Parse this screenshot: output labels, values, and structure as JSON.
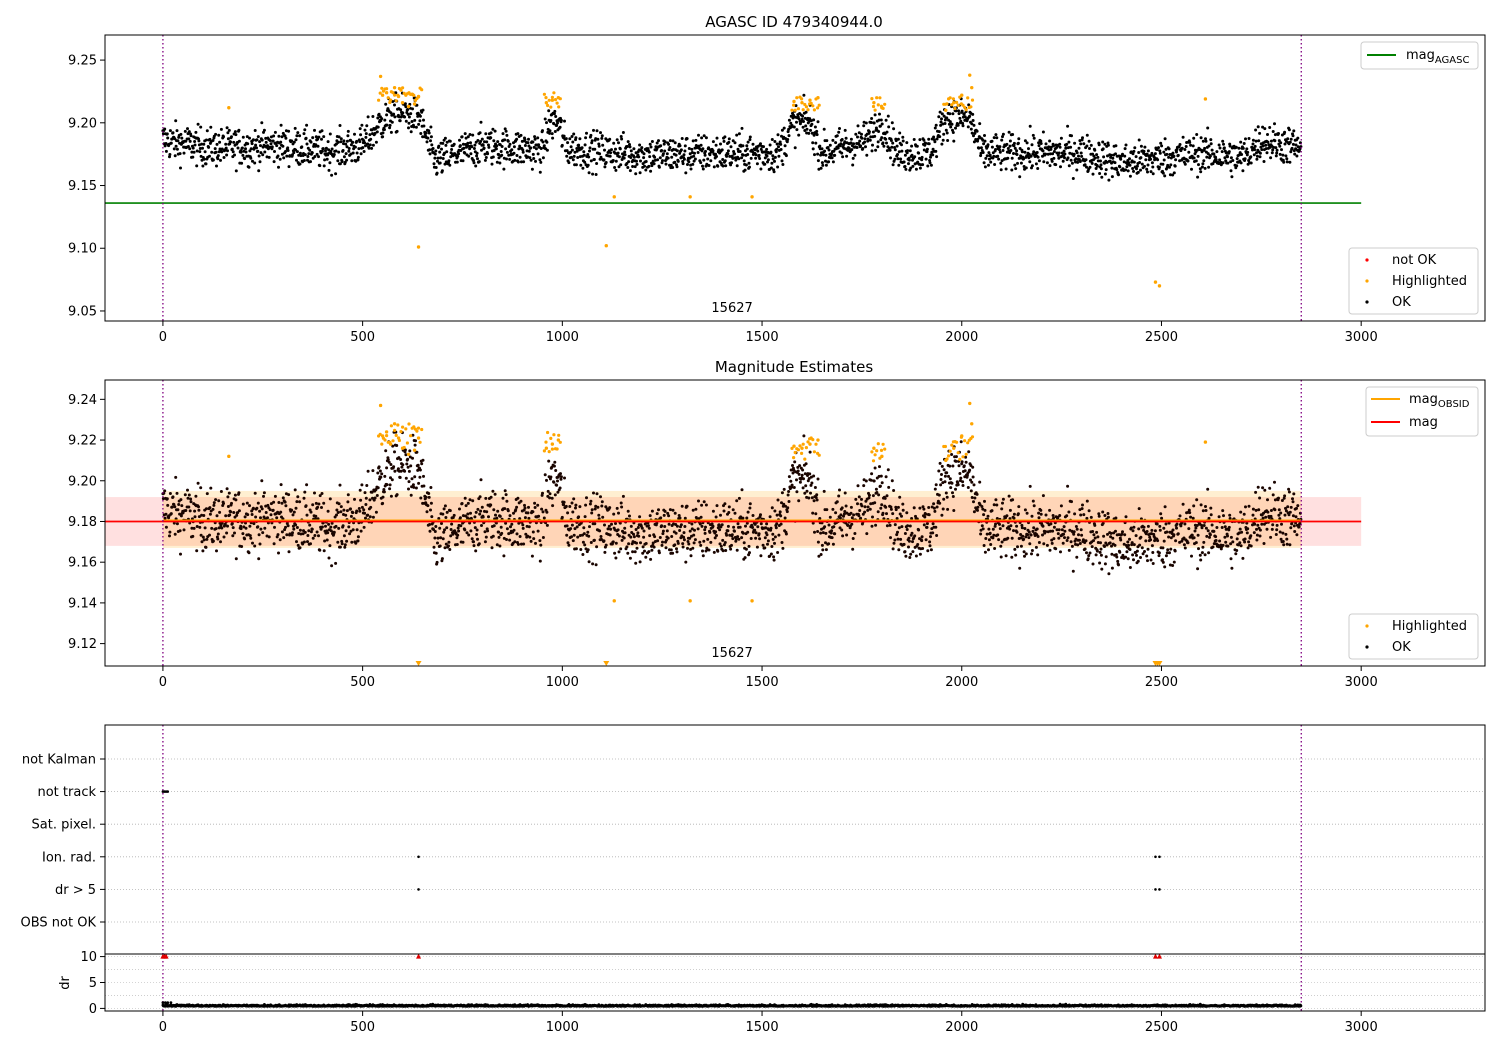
{
  "chart_data": [
    {
      "type": "scatter",
      "title": "AGASC ID 479340944.0",
      "xlim": [
        -145,
        3310
      ],
      "ylim": [
        9.042,
        9.27
      ],
      "xticks": [
        0,
        500,
        1000,
        1500,
        2000,
        2500,
        3000
      ],
      "yticks": [
        9.05,
        9.1,
        9.15,
        9.2,
        9.25
      ],
      "ytick_labels": [
        "9.05",
        "9.10",
        "9.15",
        "9.20",
        "9.25"
      ],
      "obsid_label": "15627",
      "obsid_label_x": 1425,
      "vlines": [
        0,
        2850
      ],
      "hlines": [
        {
          "name": "mag_AGASC",
          "y": 9.136,
          "x0": -145,
          "x1": 3000,
          "color": "#008000"
        }
      ],
      "legend_lines": [
        {
          "label": "mag",
          "sub": "AGASC",
          "color": "#008000"
        }
      ],
      "legend_points": [
        {
          "label": "not OK",
          "color": "#ff0000"
        },
        {
          "label": "Highlighted",
          "color": "#ffa500"
        },
        {
          "label": "OK",
          "color": "#000000"
        }
      ],
      "trend": [
        [
          0,
          9.186
        ],
        [
          120,
          9.18
        ],
        [
          300,
          9.182
        ],
        [
          420,
          9.177
        ],
        [
          500,
          9.182
        ],
        [
          540,
          9.198
        ],
        [
          580,
          9.208
        ],
        [
          640,
          9.206
        ],
        [
          680,
          9.17
        ],
        [
          800,
          9.182
        ],
        [
          950,
          9.178
        ],
        [
          970,
          9.2
        ],
        [
          990,
          9.2
        ],
        [
          1010,
          9.18
        ],
        [
          1200,
          9.174
        ],
        [
          1400,
          9.176
        ],
        [
          1540,
          9.176
        ],
        [
          1580,
          9.2
        ],
        [
          1620,
          9.2
        ],
        [
          1650,
          9.176
        ],
        [
          1760,
          9.186
        ],
        [
          1800,
          9.2
        ],
        [
          1840,
          9.176
        ],
        [
          1920,
          9.176
        ],
        [
          1960,
          9.204
        ],
        [
          2020,
          9.204
        ],
        [
          2050,
          9.176
        ],
        [
          2300,
          9.176
        ],
        [
          2400,
          9.168
        ],
        [
          2600,
          9.176
        ],
        [
          2700,
          9.172
        ],
        [
          2750,
          9.186
        ],
        [
          2850,
          9.18
        ]
      ],
      "spread": 0.01,
      "highlighted": [
        [
          545,
          9.237
        ],
        [
          550,
          9.222
        ],
        [
          560,
          9.224
        ],
        [
          570,
          9.218
        ],
        [
          580,
          9.228
        ],
        [
          590,
          9.221
        ],
        [
          600,
          9.216
        ],
        [
          615,
          9.213
        ],
        [
          630,
          9.215
        ],
        [
          640,
          9.221
        ],
        [
          165,
          9.212
        ],
        [
          640,
          9.101
        ],
        [
          960,
          9.216
        ],
        [
          975,
          9.218
        ],
        [
          990,
          9.22
        ],
        [
          1130,
          9.141
        ],
        [
          1110,
          9.102
        ],
        [
          1320,
          9.141
        ],
        [
          1475,
          9.141
        ],
        [
          1580,
          9.217
        ],
        [
          1600,
          9.216
        ],
        [
          1620,
          9.218
        ],
        [
          1640,
          9.22
        ],
        [
          1780,
          9.216
        ],
        [
          1800,
          9.212
        ],
        [
          1960,
          9.21
        ],
        [
          1980,
          9.216
        ],
        [
          2000,
          9.222
        ],
        [
          2020,
          9.238
        ],
        [
          2025,
          9.228
        ],
        [
          2485,
          9.073
        ],
        [
          2495,
          9.07
        ],
        [
          2610,
          9.219
        ]
      ]
    },
    {
      "type": "scatter",
      "title": "Magnitude Estimates",
      "xlim": [
        -145,
        3310
      ],
      "ylim": [
        9.109,
        9.2495
      ],
      "xticks": [
        0,
        500,
        1000,
        1500,
        2000,
        2500,
        3000
      ],
      "yticks": [
        9.12,
        9.14,
        9.16,
        9.18,
        9.2,
        9.22,
        9.24
      ],
      "ytick_labels": [
        "9.12",
        "9.14",
        "9.16",
        "9.18",
        "9.20",
        "9.22",
        "9.24"
      ],
      "obsid_label": "15627",
      "obsid_label_x": 1425,
      "vlines": [
        0,
        2850
      ],
      "hlines": [
        {
          "name": "mag_OBSID",
          "y": 9.1805,
          "x0": 0,
          "x1": 2850,
          "color": "#ffa500"
        },
        {
          "name": "mag",
          "y": 9.18,
          "x0": -145,
          "x1": 3000,
          "color": "#ff0000"
        }
      ],
      "bands": [
        {
          "y0": 9.168,
          "y1": 9.192,
          "x0": -145,
          "x1": 3000,
          "color": "#ff0000",
          "opacity": 0.12
        },
        {
          "y0": 9.167,
          "y1": 9.195,
          "x0": 0,
          "x1": 2850,
          "color": "#ffa500",
          "opacity": 0.18
        }
      ],
      "legend_lines": [
        {
          "label": "mag",
          "sub": "OBSID",
          "color": "#ffa500"
        },
        {
          "label": "mag",
          "sub": "",
          "color": "#ff0000"
        }
      ],
      "legend_points": [
        {
          "label": "Highlighted",
          "color": "#ffa500"
        },
        {
          "label": "OK",
          "color": "#000000"
        }
      ],
      "trend_from_panel": 0,
      "spread": 0.01,
      "highlighted_from_panel": 0,
      "offscale_markers": [
        640,
        1110,
        2485,
        2490,
        2495
      ]
    },
    {
      "type": "scatter",
      "xlim": [
        -145,
        3310
      ],
      "xticks": [
        0,
        500,
        1000,
        1500,
        2000,
        2500,
        3000
      ],
      "vlines": [
        0,
        2850
      ],
      "flags": [
        "not Kalman",
        "not track",
        "Sat. pixel.",
        "Ion. rad.",
        "dr > 5",
        "OBS not OK"
      ],
      "flag_points": {
        "not track": [
          0,
          4,
          8,
          12
        ],
        "Ion. rad.": [
          640,
          2485,
          2495
        ],
        "dr > 5": [
          640,
          2485,
          2495
        ]
      },
      "dr": {
        "ylabel": "dr",
        "ylim": [
          -0.5,
          10.5
        ],
        "yticks": [
          0,
          5,
          10
        ],
        "clip_markers": [
          0,
          4,
          8,
          640,
          2485,
          2495
        ],
        "baseline": 0.4
      }
    }
  ]
}
